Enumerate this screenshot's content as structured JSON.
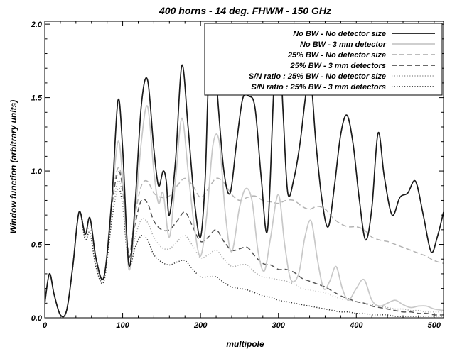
{
  "chart_data": {
    "type": "line",
    "title": "400 horns - 14 deg. FHWM - 150 GHz",
    "xlabel": "multipole",
    "ylabel": "Window function (arbitrary units)",
    "xlim": [
      0,
      512
    ],
    "ylim": [
      0,
      2.02
    ],
    "xticks": [
      0,
      100,
      200,
      300,
      400,
      500
    ],
    "yticks": [
      0.0,
      0.5,
      1.0,
      1.5,
      2.0
    ],
    "xtick_labels": [
      "0",
      "100",
      "200",
      "300",
      "400",
      "500"
    ],
    "ytick_labels": [
      "0.0",
      "0.5",
      "1.0",
      "1.5",
      "2.0"
    ],
    "grid": false,
    "legend_position": "top-right",
    "series": [
      {
        "name": "No BW - No detector size",
        "color": "#1a1a1a",
        "dash": "solid",
        "x": [
          0,
          6,
          12,
          20,
          28,
          36,
          44,
          52,
          58,
          66,
          76,
          86,
          94,
          100,
          108,
          116,
          124,
          132,
          140,
          146,
          152,
          156,
          160,
          168,
          176,
          184,
          192,
          200,
          206,
          210,
          216,
          222,
          230,
          238,
          246,
          254,
          262,
          270,
          278,
          286,
          294,
          300,
          306,
          312,
          320,
          328,
          336,
          342,
          348,
          356,
          364,
          372,
          380,
          388,
          396,
          404,
          412,
          420,
          428,
          436,
          446,
          456,
          466,
          476,
          486,
          496,
          504,
          512
        ],
        "y": [
          0.1,
          0.3,
          0.16,
          0.02,
          0.05,
          0.35,
          0.72,
          0.57,
          0.68,
          0.4,
          0.28,
          0.8,
          1.48,
          1.15,
          0.36,
          0.78,
          1.45,
          1.62,
          1.15,
          0.9,
          1.0,
          0.93,
          0.7,
          1.08,
          1.72,
          1.3,
          0.8,
          0.55,
          0.95,
          1.6,
          1.98,
          1.5,
          1.0,
          0.85,
          1.18,
          1.49,
          1.51,
          1.43,
          0.95,
          0.6,
          1.55,
          2.0,
          1.4,
          0.85,
          0.95,
          1.2,
          1.55,
          1.6,
          1.2,
          0.8,
          0.62,
          0.9,
          1.25,
          1.38,
          1.18,
          0.8,
          0.53,
          0.75,
          1.26,
          0.96,
          0.7,
          0.82,
          0.85,
          0.93,
          0.7,
          0.45,
          0.55,
          0.72
        ]
      },
      {
        "name": "No BW - 3 mm detector",
        "color": "#c8c8c8",
        "dash": "solid",
        "x": [
          0,
          6,
          12,
          20,
          28,
          36,
          44,
          52,
          58,
          66,
          76,
          86,
          94,
          100,
          108,
          116,
          124,
          132,
          140,
          146,
          152,
          160,
          168,
          176,
          184,
          192,
          200,
          208,
          216,
          224,
          232,
          240,
          250,
          258,
          266,
          274,
          282,
          290,
          300,
          308,
          316,
          326,
          334,
          342,
          350,
          358,
          366,
          374,
          382,
          390,
          400,
          410,
          420,
          430,
          440,
          450,
          460,
          470,
          480,
          490,
          500,
          512
        ],
        "y": [
          0.1,
          0.3,
          0.16,
          0.02,
          0.05,
          0.35,
          0.72,
          0.57,
          0.68,
          0.4,
          0.28,
          0.8,
          1.2,
          0.95,
          0.33,
          0.7,
          1.2,
          1.44,
          1.0,
          0.78,
          0.85,
          0.55,
          0.95,
          1.36,
          1.0,
          0.62,
          0.42,
          0.7,
          1.18,
          1.2,
          0.7,
          0.45,
          0.75,
          0.88,
          0.8,
          0.45,
          0.32,
          0.55,
          0.84,
          0.5,
          0.26,
          0.3,
          0.55,
          0.66,
          0.4,
          0.2,
          0.25,
          0.35,
          0.2,
          0.12,
          0.2,
          0.26,
          0.12,
          0.08,
          0.1,
          0.12,
          0.09,
          0.07,
          0.08,
          0.08,
          0.06,
          0.05
        ]
      },
      {
        "name": "25% BW - No detector size",
        "color": "#b4b4b4",
        "dash": "dashed",
        "x": [
          0,
          6,
          12,
          20,
          28,
          36,
          44,
          52,
          58,
          66,
          76,
          86,
          94,
          100,
          108,
          116,
          124,
          132,
          140,
          150,
          160,
          170,
          180,
          190,
          200,
          210,
          220,
          230,
          240,
          250,
          260,
          270,
          280,
          290,
          300,
          310,
          320,
          330,
          340,
          350,
          360,
          370,
          380,
          390,
          400,
          410,
          420,
          430,
          440,
          450,
          460,
          470,
          480,
          490,
          500,
          512
        ],
        "y": [
          0.1,
          0.3,
          0.16,
          0.02,
          0.05,
          0.35,
          0.72,
          0.57,
          0.68,
          0.4,
          0.28,
          0.78,
          1.02,
          0.9,
          0.45,
          0.7,
          0.9,
          0.93,
          0.85,
          0.82,
          0.83,
          0.9,
          0.95,
          0.9,
          0.82,
          0.88,
          0.95,
          0.92,
          0.84,
          0.8,
          0.82,
          0.83,
          0.8,
          0.79,
          0.78,
          0.8,
          0.8,
          0.76,
          0.74,
          0.76,
          0.74,
          0.68,
          0.64,
          0.62,
          0.62,
          0.6,
          0.55,
          0.53,
          0.52,
          0.5,
          0.48,
          0.46,
          0.44,
          0.42,
          0.39,
          0.37
        ]
      },
      {
        "name": "25% BW - 3 mm detectors",
        "color": "#555555",
        "dash": "dashed",
        "x": [
          0,
          6,
          12,
          20,
          28,
          36,
          44,
          52,
          58,
          66,
          76,
          86,
          94,
          100,
          108,
          116,
          124,
          132,
          140,
          150,
          160,
          170,
          180,
          190,
          200,
          210,
          220,
          230,
          240,
          250,
          260,
          270,
          280,
          290,
          300,
          310,
          320,
          330,
          340,
          350,
          360,
          370,
          380,
          390,
          400,
          410,
          420,
          430,
          440,
          450,
          460,
          470,
          480,
          490,
          500,
          512
        ],
        "y": [
          0.1,
          0.3,
          0.16,
          0.02,
          0.05,
          0.35,
          0.72,
          0.57,
          0.68,
          0.4,
          0.28,
          0.76,
          0.99,
          0.88,
          0.42,
          0.64,
          0.8,
          0.78,
          0.66,
          0.6,
          0.6,
          0.66,
          0.72,
          0.62,
          0.52,
          0.55,
          0.6,
          0.52,
          0.46,
          0.47,
          0.48,
          0.42,
          0.37,
          0.36,
          0.33,
          0.33,
          0.31,
          0.27,
          0.25,
          0.23,
          0.21,
          0.18,
          0.15,
          0.13,
          0.11,
          0.1,
          0.08,
          0.07,
          0.06,
          0.05,
          0.04,
          0.04,
          0.03,
          0.03,
          0.02,
          0.02
        ]
      },
      {
        "name": "S/N ratio : 25% BW - No detector size",
        "color": "#a8a8a8",
        "dash": "dotted",
        "x": [
          0,
          6,
          12,
          20,
          28,
          36,
          44,
          52,
          58,
          66,
          76,
          86,
          94,
          100,
          108,
          116,
          124,
          132,
          140,
          150,
          160,
          170,
          180,
          190,
          200,
          210,
          220,
          230,
          240,
          250,
          260,
          270,
          280,
          290,
          300,
          310,
          320,
          330,
          340,
          350,
          360,
          370,
          380,
          390,
          400,
          410,
          420,
          430,
          440,
          450,
          460,
          470,
          480,
          490,
          500,
          512
        ],
        "y": [
          0.1,
          0.3,
          0.16,
          0.02,
          0.05,
          0.35,
          0.72,
          0.55,
          0.62,
          0.36,
          0.26,
          0.7,
          0.93,
          0.82,
          0.4,
          0.55,
          0.67,
          0.65,
          0.55,
          0.48,
          0.47,
          0.52,
          0.56,
          0.49,
          0.41,
          0.43,
          0.46,
          0.4,
          0.35,
          0.36,
          0.36,
          0.31,
          0.28,
          0.27,
          0.26,
          0.25,
          0.23,
          0.2,
          0.19,
          0.18,
          0.17,
          0.15,
          0.13,
          0.12,
          0.11,
          0.1,
          0.09,
          0.08,
          0.07,
          0.06,
          0.06,
          0.05,
          0.05,
          0.04,
          0.04,
          0.04
        ]
      },
      {
        "name": "S/N ratio : 25% BW - 3 mm detectors",
        "color": "#333333",
        "dash": "dotted",
        "x": [
          0,
          6,
          12,
          20,
          28,
          36,
          44,
          52,
          58,
          66,
          76,
          86,
          94,
          100,
          108,
          116,
          124,
          132,
          140,
          150,
          160,
          170,
          180,
          190,
          200,
          210,
          220,
          230,
          240,
          250,
          260,
          270,
          280,
          290,
          300,
          310,
          320,
          330,
          340,
          350,
          360,
          370,
          380,
          390,
          400,
          410,
          420,
          430,
          440,
          450,
          460,
          470,
          480,
          490,
          500,
          512
        ],
        "y": [
          0.1,
          0.3,
          0.16,
          0.02,
          0.05,
          0.35,
          0.72,
          0.53,
          0.58,
          0.34,
          0.25,
          0.66,
          0.88,
          0.76,
          0.36,
          0.48,
          0.56,
          0.53,
          0.43,
          0.38,
          0.36,
          0.38,
          0.39,
          0.33,
          0.28,
          0.28,
          0.28,
          0.24,
          0.21,
          0.2,
          0.19,
          0.17,
          0.15,
          0.14,
          0.12,
          0.11,
          0.1,
          0.09,
          0.08,
          0.07,
          0.06,
          0.05,
          0.04,
          0.04,
          0.03,
          0.03,
          0.02,
          0.02,
          0.02,
          0.01,
          0.01,
          0.01,
          0.01,
          0.01,
          0.01,
          0.01
        ]
      }
    ]
  }
}
